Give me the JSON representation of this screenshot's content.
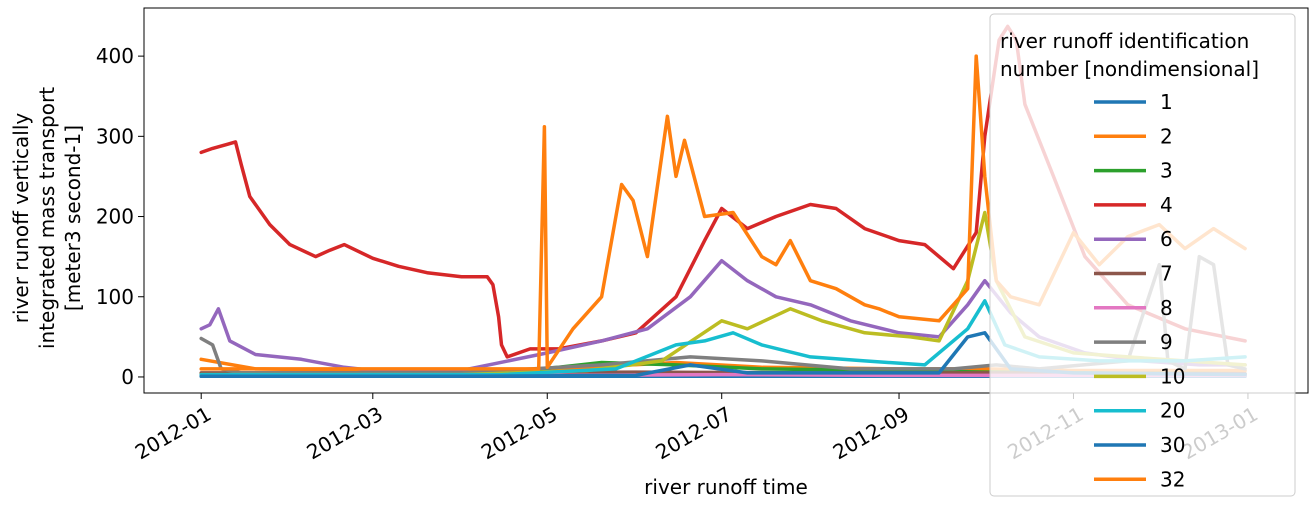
{
  "chart_data": {
    "type": "line",
    "title": "",
    "xlabel": "river runoff time",
    "ylabel_lines": [
      "river runoff vertically",
      "integrated mass transport",
      "[meter3 second-1]"
    ],
    "x_ticks": [
      "2012-01",
      "2012-03",
      "2012-05",
      "2012-07",
      "2012-09",
      "2012-11",
      "2013-01"
    ],
    "y_ticks": [
      0,
      100,
      200,
      300,
      400
    ],
    "xlim": [
      "2011-12-12",
      "2013-01-22"
    ],
    "ylim": [
      -20,
      460
    ],
    "grid": false,
    "legend": {
      "position": "top-right",
      "title_lines": [
        "river runoff identification",
        "number [nondimensional]"
      ]
    },
    "series": [
      {
        "name": "1",
        "color": "#1f77b4",
        "points": [
          [
            "2012-01-01",
            1
          ],
          [
            "2012-06-01",
            1
          ],
          [
            "2012-09-01",
            1
          ],
          [
            "2012-11-01",
            1
          ],
          [
            "2012-12-31",
            1
          ]
        ]
      },
      {
        "name": "2",
        "color": "#ff7f0e",
        "points": [
          [
            "2012-01-01",
            22
          ],
          [
            "2012-01-20",
            10
          ],
          [
            "2012-03-01",
            8
          ],
          [
            "2012-04-30",
            9
          ],
          [
            "2012-05-15",
            12
          ],
          [
            "2012-06-15",
            18
          ],
          [
            "2012-07-15",
            12
          ],
          [
            "2012-09-01",
            10
          ],
          [
            "2012-10-01",
            10
          ],
          [
            "2012-11-01",
            8
          ],
          [
            "2012-12-31",
            8
          ]
        ]
      },
      {
        "name": "3",
        "color": "#2ca02c",
        "points": [
          [
            "2012-01-01",
            4
          ],
          [
            "2012-03-01",
            3
          ],
          [
            "2012-04-15",
            6
          ],
          [
            "2012-05-05",
            12
          ],
          [
            "2012-05-20",
            18
          ],
          [
            "2012-06-15",
            15
          ],
          [
            "2012-07-15",
            10
          ],
          [
            "2012-09-01",
            8
          ],
          [
            "2012-10-01",
            6
          ],
          [
            "2012-11-01",
            5
          ],
          [
            "2012-12-31",
            4
          ]
        ]
      },
      {
        "name": "4",
        "color": "#d62728",
        "points": [
          [
            "2012-01-01",
            280
          ],
          [
            "2012-01-05",
            285
          ],
          [
            "2012-01-10",
            290
          ],
          [
            "2012-01-13",
            293
          ],
          [
            "2012-01-15",
            265
          ],
          [
            "2012-01-18",
            225
          ],
          [
            "2012-01-25",
            190
          ],
          [
            "2012-02-01",
            165
          ],
          [
            "2012-02-10",
            150
          ],
          [
            "2012-02-15",
            158
          ],
          [
            "2012-02-20",
            165
          ],
          [
            "2012-03-01",
            148
          ],
          [
            "2012-03-10",
            138
          ],
          [
            "2012-03-20",
            130
          ],
          [
            "2012-04-01",
            125
          ],
          [
            "2012-04-10",
            125
          ],
          [
            "2012-04-12",
            115
          ],
          [
            "2012-04-14",
            75
          ],
          [
            "2012-04-15",
            40
          ],
          [
            "2012-04-17",
            25
          ],
          [
            "2012-04-25",
            35
          ],
          [
            "2012-05-05",
            35
          ],
          [
            "2012-05-20",
            45
          ],
          [
            "2012-06-01",
            55
          ],
          [
            "2012-06-15",
            100
          ],
          [
            "2012-06-25",
            170
          ],
          [
            "2012-07-01",
            210
          ],
          [
            "2012-07-10",
            185
          ],
          [
            "2012-07-20",
            200
          ],
          [
            "2012-08-01",
            215
          ],
          [
            "2012-08-10",
            210
          ],
          [
            "2012-08-20",
            185
          ],
          [
            "2012-09-01",
            170
          ],
          [
            "2012-09-10",
            165
          ],
          [
            "2012-09-15",
            150
          ],
          [
            "2012-09-20",
            135
          ],
          [
            "2012-09-28",
            180
          ],
          [
            "2012-10-01",
            300
          ],
          [
            "2012-10-06",
            420
          ],
          [
            "2012-10-09",
            437
          ],
          [
            "2012-10-12",
            420
          ],
          [
            "2012-10-15",
            340
          ],
          [
            "2012-10-25",
            250
          ],
          [
            "2012-11-05",
            150
          ],
          [
            "2012-11-20",
            90
          ],
          [
            "2012-12-10",
            60
          ],
          [
            "2012-12-31",
            45
          ]
        ]
      },
      {
        "name": "6",
        "color": "#9467bd",
        "points": [
          [
            "2012-01-01",
            60
          ],
          [
            "2012-01-04",
            65
          ],
          [
            "2012-01-07",
            85
          ],
          [
            "2012-01-11",
            45
          ],
          [
            "2012-01-20",
            28
          ],
          [
            "2012-02-05",
            22
          ],
          [
            "2012-02-20",
            12
          ],
          [
            "2012-03-01",
            8
          ],
          [
            "2012-04-01",
            8
          ],
          [
            "2012-05-01",
            30
          ],
          [
            "2012-05-20",
            45
          ],
          [
            "2012-06-05",
            60
          ],
          [
            "2012-06-20",
            100
          ],
          [
            "2012-07-01",
            145
          ],
          [
            "2012-07-10",
            120
          ],
          [
            "2012-07-20",
            100
          ],
          [
            "2012-08-01",
            90
          ],
          [
            "2012-08-15",
            70
          ],
          [
            "2012-09-01",
            55
          ],
          [
            "2012-09-15",
            50
          ],
          [
            "2012-09-25",
            90
          ],
          [
            "2012-10-01",
            120
          ],
          [
            "2012-10-10",
            80
          ],
          [
            "2012-10-20",
            50
          ],
          [
            "2012-11-05",
            30
          ],
          [
            "2012-11-25",
            20
          ],
          [
            "2012-12-15",
            15
          ],
          [
            "2012-12-31",
            15
          ]
        ]
      },
      {
        "name": "7",
        "color": "#8c564b",
        "points": [
          [
            "2012-01-01",
            5
          ],
          [
            "2012-04-01",
            5
          ],
          [
            "2012-06-01",
            6
          ],
          [
            "2012-08-01",
            5
          ],
          [
            "2012-10-01",
            5
          ],
          [
            "2012-12-31",
            4
          ]
        ]
      },
      {
        "name": "8",
        "color": "#e377c2",
        "points": [
          [
            "2012-01-01",
            2
          ],
          [
            "2012-05-01",
            2
          ],
          [
            "2012-07-01",
            3
          ],
          [
            "2012-09-01",
            2
          ],
          [
            "2012-12-31",
            2
          ]
        ]
      },
      {
        "name": "9",
        "color": "#7f7f7f",
        "points": [
          [
            "2012-01-01",
            48
          ],
          [
            "2012-01-05",
            40
          ],
          [
            "2012-01-08",
            10
          ],
          [
            "2012-01-15",
            5
          ],
          [
            "2012-04-01",
            5
          ],
          [
            "2012-05-20",
            15
          ],
          [
            "2012-06-20",
            25
          ],
          [
            "2012-07-15",
            20
          ],
          [
            "2012-08-15",
            10
          ],
          [
            "2012-09-20",
            10
          ],
          [
            "2012-10-05",
            15
          ],
          [
            "2012-10-20",
            10
          ],
          [
            "2012-11-20",
            20
          ],
          [
            "2012-12-01",
            140
          ],
          [
            "2012-12-04",
            20
          ],
          [
            "2012-12-10",
            10
          ],
          [
            "2012-12-15",
            150
          ],
          [
            "2012-12-20",
            140
          ],
          [
            "2012-12-25",
            15
          ],
          [
            "2012-12-31",
            10
          ]
        ]
      },
      {
        "name": "10",
        "color": "#bcbd22",
        "points": [
          [
            "2012-01-01",
            3
          ],
          [
            "2012-04-01",
            3
          ],
          [
            "2012-05-15",
            8
          ],
          [
            "2012-06-10",
            20
          ],
          [
            "2012-07-01",
            70
          ],
          [
            "2012-07-10",
            60
          ],
          [
            "2012-07-25",
            85
          ],
          [
            "2012-08-05",
            70
          ],
          [
            "2012-08-20",
            55
          ],
          [
            "2012-09-05",
            50
          ],
          [
            "2012-09-15",
            45
          ],
          [
            "2012-09-25",
            120
          ],
          [
            "2012-10-01",
            205
          ],
          [
            "2012-10-05",
            120
          ],
          [
            "2012-10-15",
            50
          ],
          [
            "2012-11-01",
            30
          ],
          [
            "2012-11-20",
            25
          ],
          [
            "2012-12-10",
            20
          ],
          [
            "2012-12-31",
            15
          ]
        ]
      },
      {
        "name": "20",
        "color": "#17becf",
        "points": [
          [
            "2012-01-01",
            3
          ],
          [
            "2012-04-15",
            3
          ],
          [
            "2012-05-25",
            10
          ],
          [
            "2012-06-15",
            40
          ],
          [
            "2012-06-25",
            45
          ],
          [
            "2012-07-05",
            55
          ],
          [
            "2012-07-15",
            40
          ],
          [
            "2012-08-01",
            25
          ],
          [
            "2012-08-20",
            20
          ],
          [
            "2012-09-10",
            15
          ],
          [
            "2012-09-25",
            60
          ],
          [
            "2012-10-01",
            95
          ],
          [
            "2012-10-08",
            40
          ],
          [
            "2012-10-20",
            25
          ],
          [
            "2012-11-10",
            20
          ],
          [
            "2012-12-10",
            20
          ],
          [
            "2012-12-31",
            25
          ]
        ]
      },
      {
        "name": "30",
        "color": "#1f77b4",
        "points": [
          [
            "2012-01-01",
            1
          ],
          [
            "2012-04-01",
            1
          ],
          [
            "2012-06-01",
            2
          ],
          [
            "2012-06-20",
            15
          ],
          [
            "2012-07-10",
            5
          ],
          [
            "2012-08-01",
            5
          ],
          [
            "2012-09-15",
            5
          ],
          [
            "2012-09-25",
            50
          ],
          [
            "2012-10-01",
            55
          ],
          [
            "2012-10-10",
            10
          ],
          [
            "2012-11-01",
            5
          ],
          [
            "2012-12-31",
            3
          ]
        ]
      },
      {
        "name": "32",
        "color": "#ff7f0e",
        "points": [
          [
            "2012-01-01",
            10
          ],
          [
            "2012-04-28",
            10
          ],
          [
            "2012-04-30",
            312
          ],
          [
            "2012-05-01",
            12
          ],
          [
            "2012-05-10",
            60
          ],
          [
            "2012-05-20",
            100
          ],
          [
            "2012-05-27",
            240
          ],
          [
            "2012-05-31",
            220
          ],
          [
            "2012-06-05",
            150
          ],
          [
            "2012-06-12",
            325
          ],
          [
            "2012-06-15",
            250
          ],
          [
            "2012-06-18",
            295
          ],
          [
            "2012-06-25",
            200
          ],
          [
            "2012-07-05",
            205
          ],
          [
            "2012-07-15",
            150
          ],
          [
            "2012-07-20",
            140
          ],
          [
            "2012-07-25",
            170
          ],
          [
            "2012-08-01",
            120
          ],
          [
            "2012-08-10",
            110
          ],
          [
            "2012-08-20",
            90
          ],
          [
            "2012-08-25",
            85
          ],
          [
            "2012-09-01",
            75
          ],
          [
            "2012-09-15",
            70
          ],
          [
            "2012-09-25",
            110
          ],
          [
            "2012-09-28",
            400
          ],
          [
            "2012-10-01",
            250
          ],
          [
            "2012-10-05",
            120
          ],
          [
            "2012-10-10",
            100
          ],
          [
            "2012-10-20",
            90
          ],
          [
            "2012-11-01",
            180
          ],
          [
            "2012-11-10",
            140
          ],
          [
            "2012-11-20",
            175
          ],
          [
            "2012-12-01",
            190
          ],
          [
            "2012-12-10",
            160
          ],
          [
            "2012-12-20",
            185
          ],
          [
            "2012-12-31",
            160
          ]
        ]
      }
    ]
  }
}
